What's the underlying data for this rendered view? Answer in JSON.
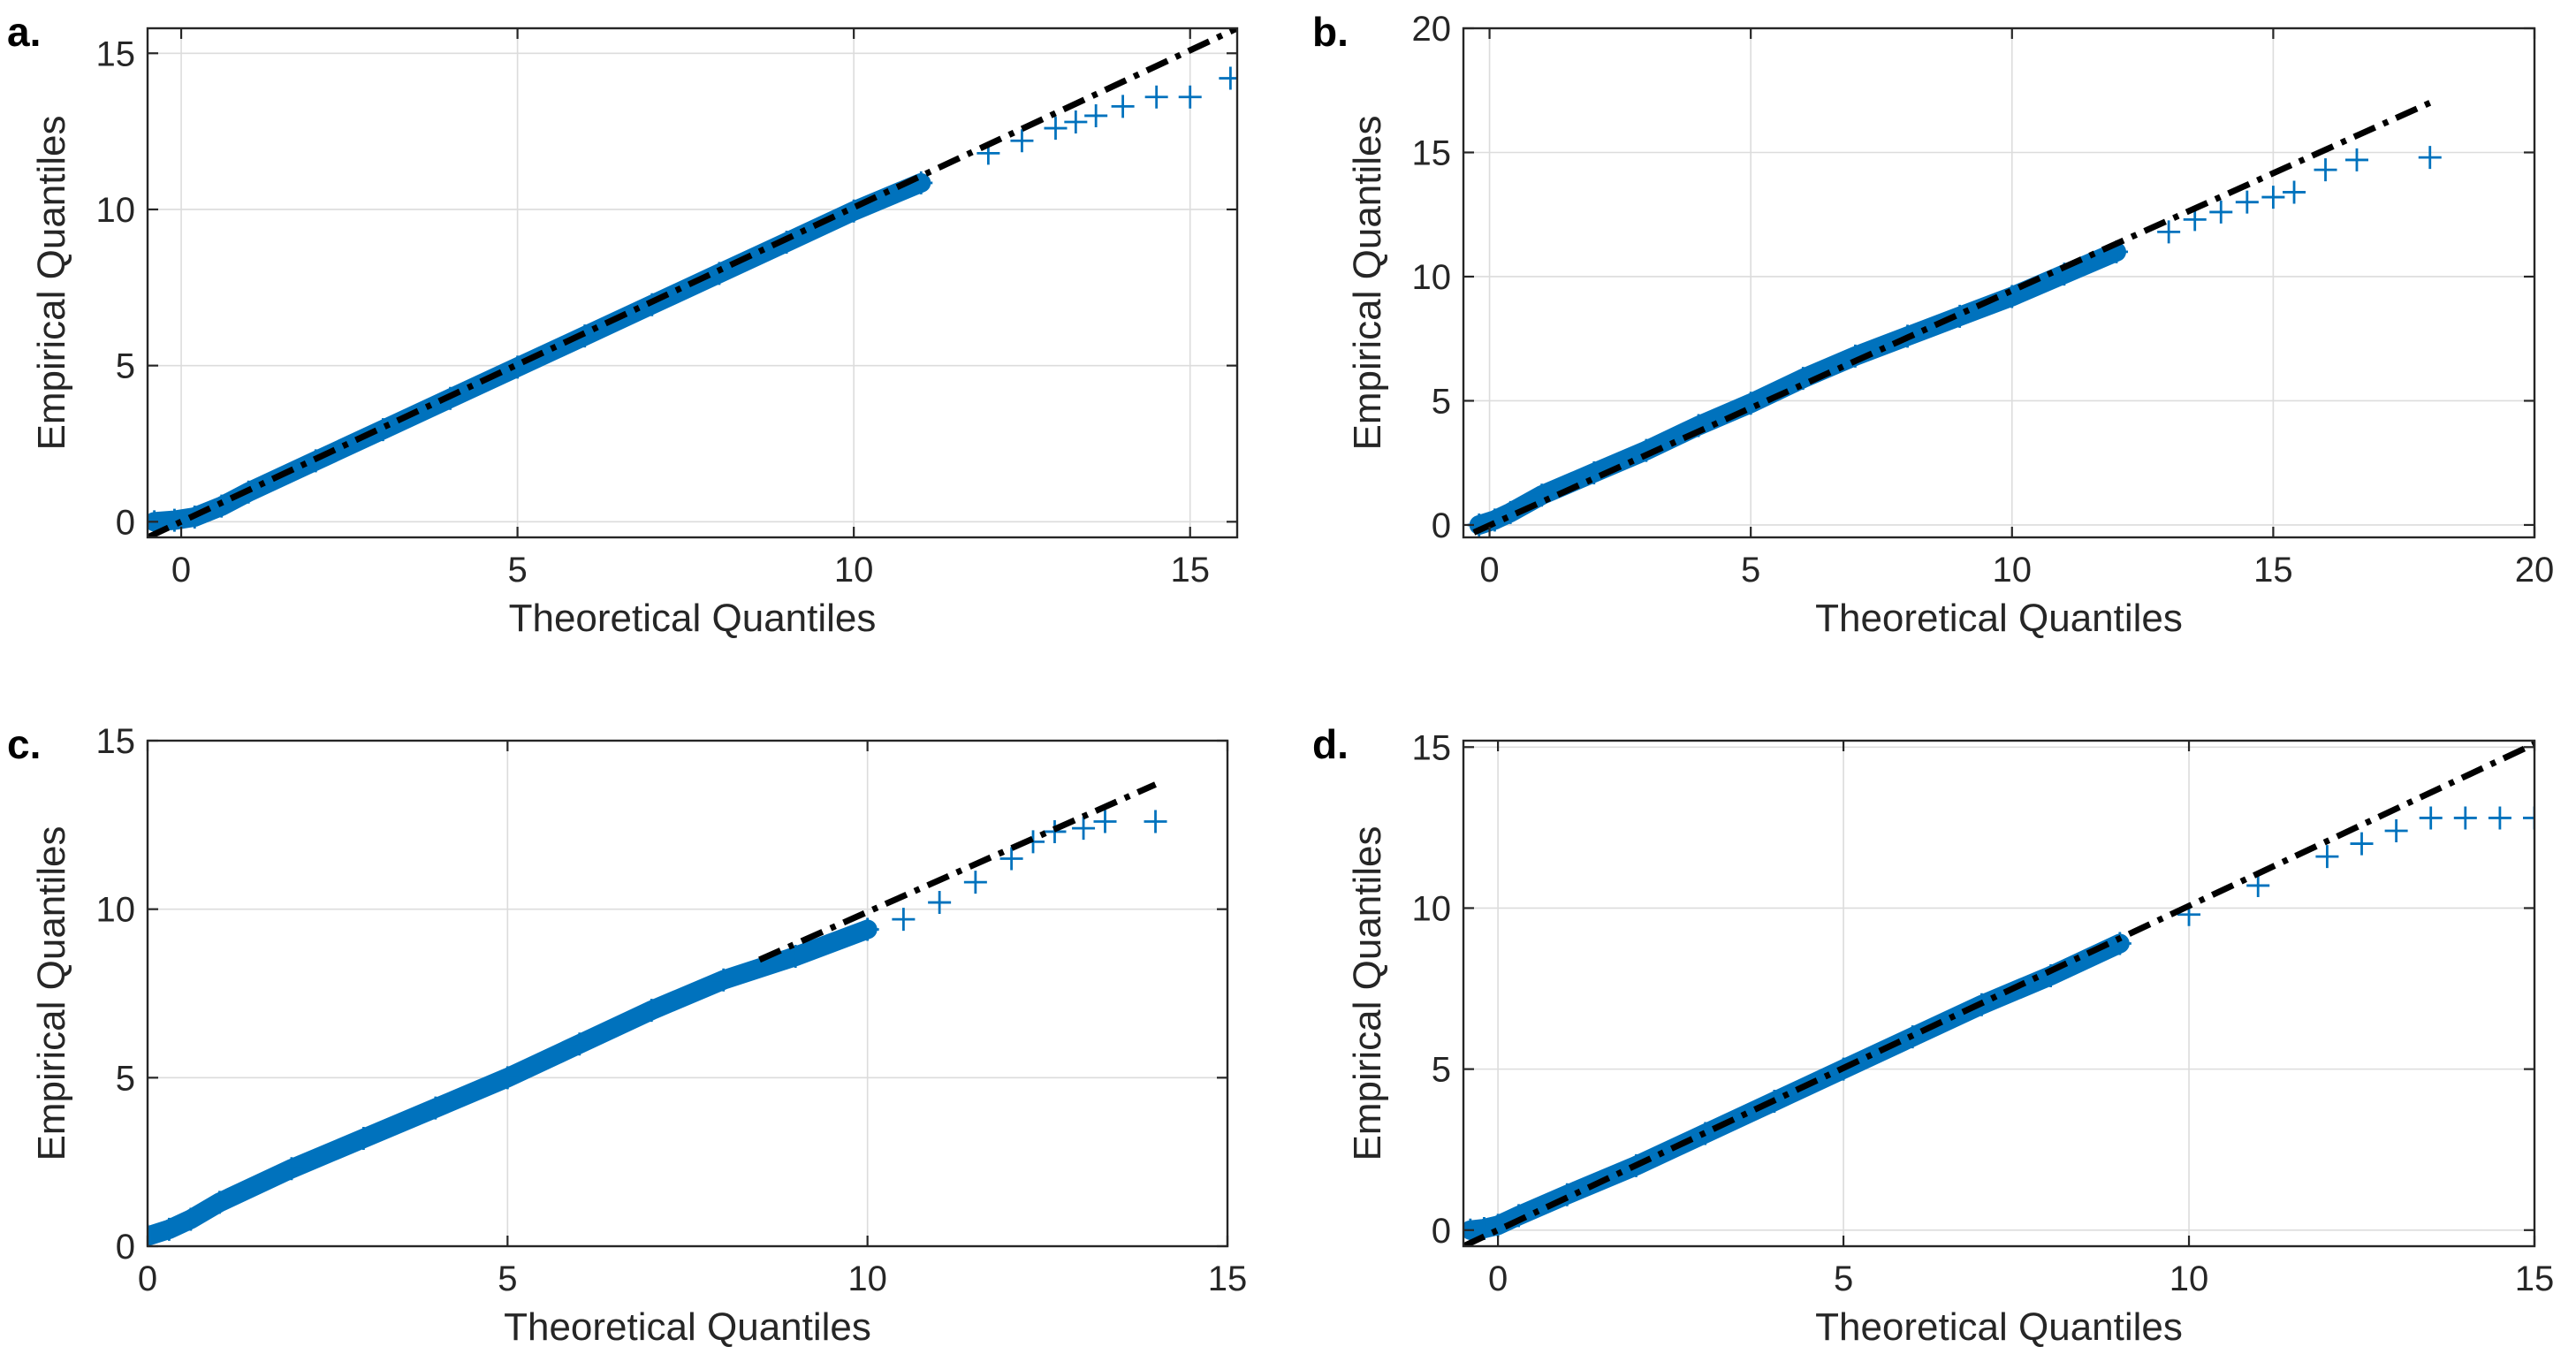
{
  "colors": {
    "marker": "#0072BD",
    "reference_line": "#000000",
    "grid": "#dcdcdc",
    "axes": "#262626"
  },
  "chart_data": [
    {
      "id": "a",
      "panel_label": "a.",
      "type": "scatter",
      "subtype": "qq-plot",
      "xlabel": "Theoretical Quantiles",
      "ylabel": "Empirical Quantiles",
      "xlim": [
        -0.5,
        15.7
      ],
      "ylim": [
        -0.5,
        15.8
      ],
      "xticks": [
        0,
        5,
        10,
        15
      ],
      "yticks": [
        0,
        5,
        10,
        15
      ],
      "xtick_labels": [
        "0",
        "5",
        "10",
        "15"
      ],
      "ytick_labels": [
        "0",
        "5",
        "10",
        "15"
      ],
      "grid": true,
      "reference_line": {
        "x": [
          -0.5,
          15.7
        ],
        "y": [
          -0.5,
          15.8
        ]
      },
      "series": [
        {
          "name": "quantiles",
          "marker": "+",
          "x": [
            -0.4,
            -0.1,
            0.2,
            0.6,
            1.0,
            2.0,
            3.0,
            4.0,
            5.0,
            6.0,
            7.0,
            8.0,
            9.0,
            10.0,
            11.0,
            12.0,
            12.5,
            13.0,
            13.3,
            13.6,
            14.0,
            14.5,
            15.0,
            15.6
          ],
          "y": [
            0.0,
            0.05,
            0.15,
            0.5,
            0.95,
            1.95,
            2.95,
            3.95,
            4.95,
            5.95,
            6.95,
            7.95,
            8.95,
            9.95,
            10.85,
            11.8,
            12.2,
            12.6,
            12.8,
            13.0,
            13.3,
            13.6,
            13.6,
            14.2
          ]
        }
      ]
    },
    {
      "id": "b",
      "panel_label": "b.",
      "type": "scatter",
      "subtype": "qq-plot",
      "xlabel": "Theoretical Quantiles",
      "ylabel": "Empirical Quantiles",
      "xlim": [
        -0.5,
        20
      ],
      "ylim": [
        -0.5,
        20
      ],
      "xticks": [
        0,
        5,
        10,
        15,
        20
      ],
      "yticks": [
        0,
        5,
        10,
        15,
        20
      ],
      "xtick_labels": [
        "0",
        "5",
        "10",
        "15",
        "20"
      ],
      "ytick_labels": [
        "0",
        "5",
        "10",
        "15",
        "20"
      ],
      "grid": true,
      "reference_line": {
        "x": [
          -0.3,
          18
        ],
        "y": [
          -0.3,
          17
        ]
      },
      "series": [
        {
          "name": "quantiles",
          "marker": "+",
          "x": [
            -0.2,
            0.1,
            0.4,
            1.0,
            2.0,
            3.0,
            4.0,
            5.0,
            6.0,
            7.0,
            8.0,
            9.0,
            10.0,
            11.0,
            12.0,
            13.0,
            13.5,
            14.0,
            14.5,
            15.0,
            15.4,
            16.0,
            16.6,
            18.0
          ],
          "y": [
            0.0,
            0.2,
            0.5,
            1.2,
            2.1,
            3.0,
            4.0,
            4.9,
            5.9,
            6.8,
            7.6,
            8.4,
            9.2,
            10.1,
            11.0,
            11.8,
            12.3,
            12.6,
            13.0,
            13.2,
            13.4,
            14.3,
            14.7,
            14.8
          ]
        }
      ]
    },
    {
      "id": "c",
      "panel_label": "c.",
      "type": "scatter",
      "subtype": "qq-plot",
      "xlabel": "Theoretical Quantiles",
      "ylabel": "Empirical Quantiles",
      "xlim": [
        0,
        15
      ],
      "ylim": [
        0,
        15
      ],
      "xticks": [
        0,
        5,
        10,
        15
      ],
      "yticks": [
        0,
        5,
        10,
        15
      ],
      "xtick_labels": [
        "0",
        "5",
        "10",
        "15"
      ],
      "ytick_labels": [
        "0",
        "5",
        "10",
        "15"
      ],
      "grid": true,
      "reference_line": {
        "x": [
          8.5,
          14
        ],
        "y": [
          8.5,
          13.7
        ]
      },
      "series": [
        {
          "name": "quantiles",
          "marker": "+",
          "x": [
            0.0,
            0.3,
            0.6,
            1.0,
            2.0,
            3.0,
            4.0,
            5.0,
            6.0,
            7.0,
            8.0,
            9.0,
            10.0,
            10.5,
            11.0,
            11.5,
            12.0,
            12.3,
            12.6,
            13.0,
            13.3,
            14.0
          ],
          "y": [
            0.3,
            0.5,
            0.8,
            1.3,
            2.3,
            3.2,
            4.1,
            5.0,
            6.0,
            7.0,
            7.9,
            8.6,
            9.4,
            9.7,
            10.2,
            10.8,
            11.5,
            12.0,
            12.3,
            12.4,
            12.6,
            12.6
          ]
        }
      ]
    },
    {
      "id": "d",
      "panel_label": "d.",
      "type": "scatter",
      "subtype": "qq-plot",
      "xlabel": "Theoretical Quantiles",
      "ylabel": "Empirical Quantiles",
      "xlim": [
        -0.5,
        15
      ],
      "ylim": [
        -0.5,
        15.2
      ],
      "xticks": [
        0,
        5,
        10,
        15
      ],
      "yticks": [
        0,
        5,
        10,
        15
      ],
      "xtick_labels": [
        "0",
        "5",
        "10",
        "15"
      ],
      "ytick_labels": [
        "0",
        "5",
        "10",
        "15"
      ],
      "grid": true,
      "reference_line": {
        "x": [
          -0.5,
          15
        ],
        "y": [
          -0.5,
          15.1
        ]
      },
      "series": [
        {
          "name": "quantiles",
          "marker": "+",
          "x": [
            -0.4,
            -0.2,
            0.0,
            0.3,
            1.0,
            2.0,
            3.0,
            4.0,
            5.0,
            6.0,
            7.0,
            8.0,
            9.0,
            10.0,
            11.0,
            12.0,
            12.5,
            13.0,
            13.5,
            14.0,
            14.5,
            15.0
          ],
          "y": [
            0.0,
            0.05,
            0.15,
            0.45,
            1.1,
            2.0,
            3.0,
            4.0,
            5.0,
            6.0,
            7.0,
            7.9,
            8.9,
            9.8,
            10.7,
            11.6,
            12.0,
            12.4,
            12.8,
            12.8,
            12.8,
            12.8
          ]
        }
      ]
    }
  ]
}
